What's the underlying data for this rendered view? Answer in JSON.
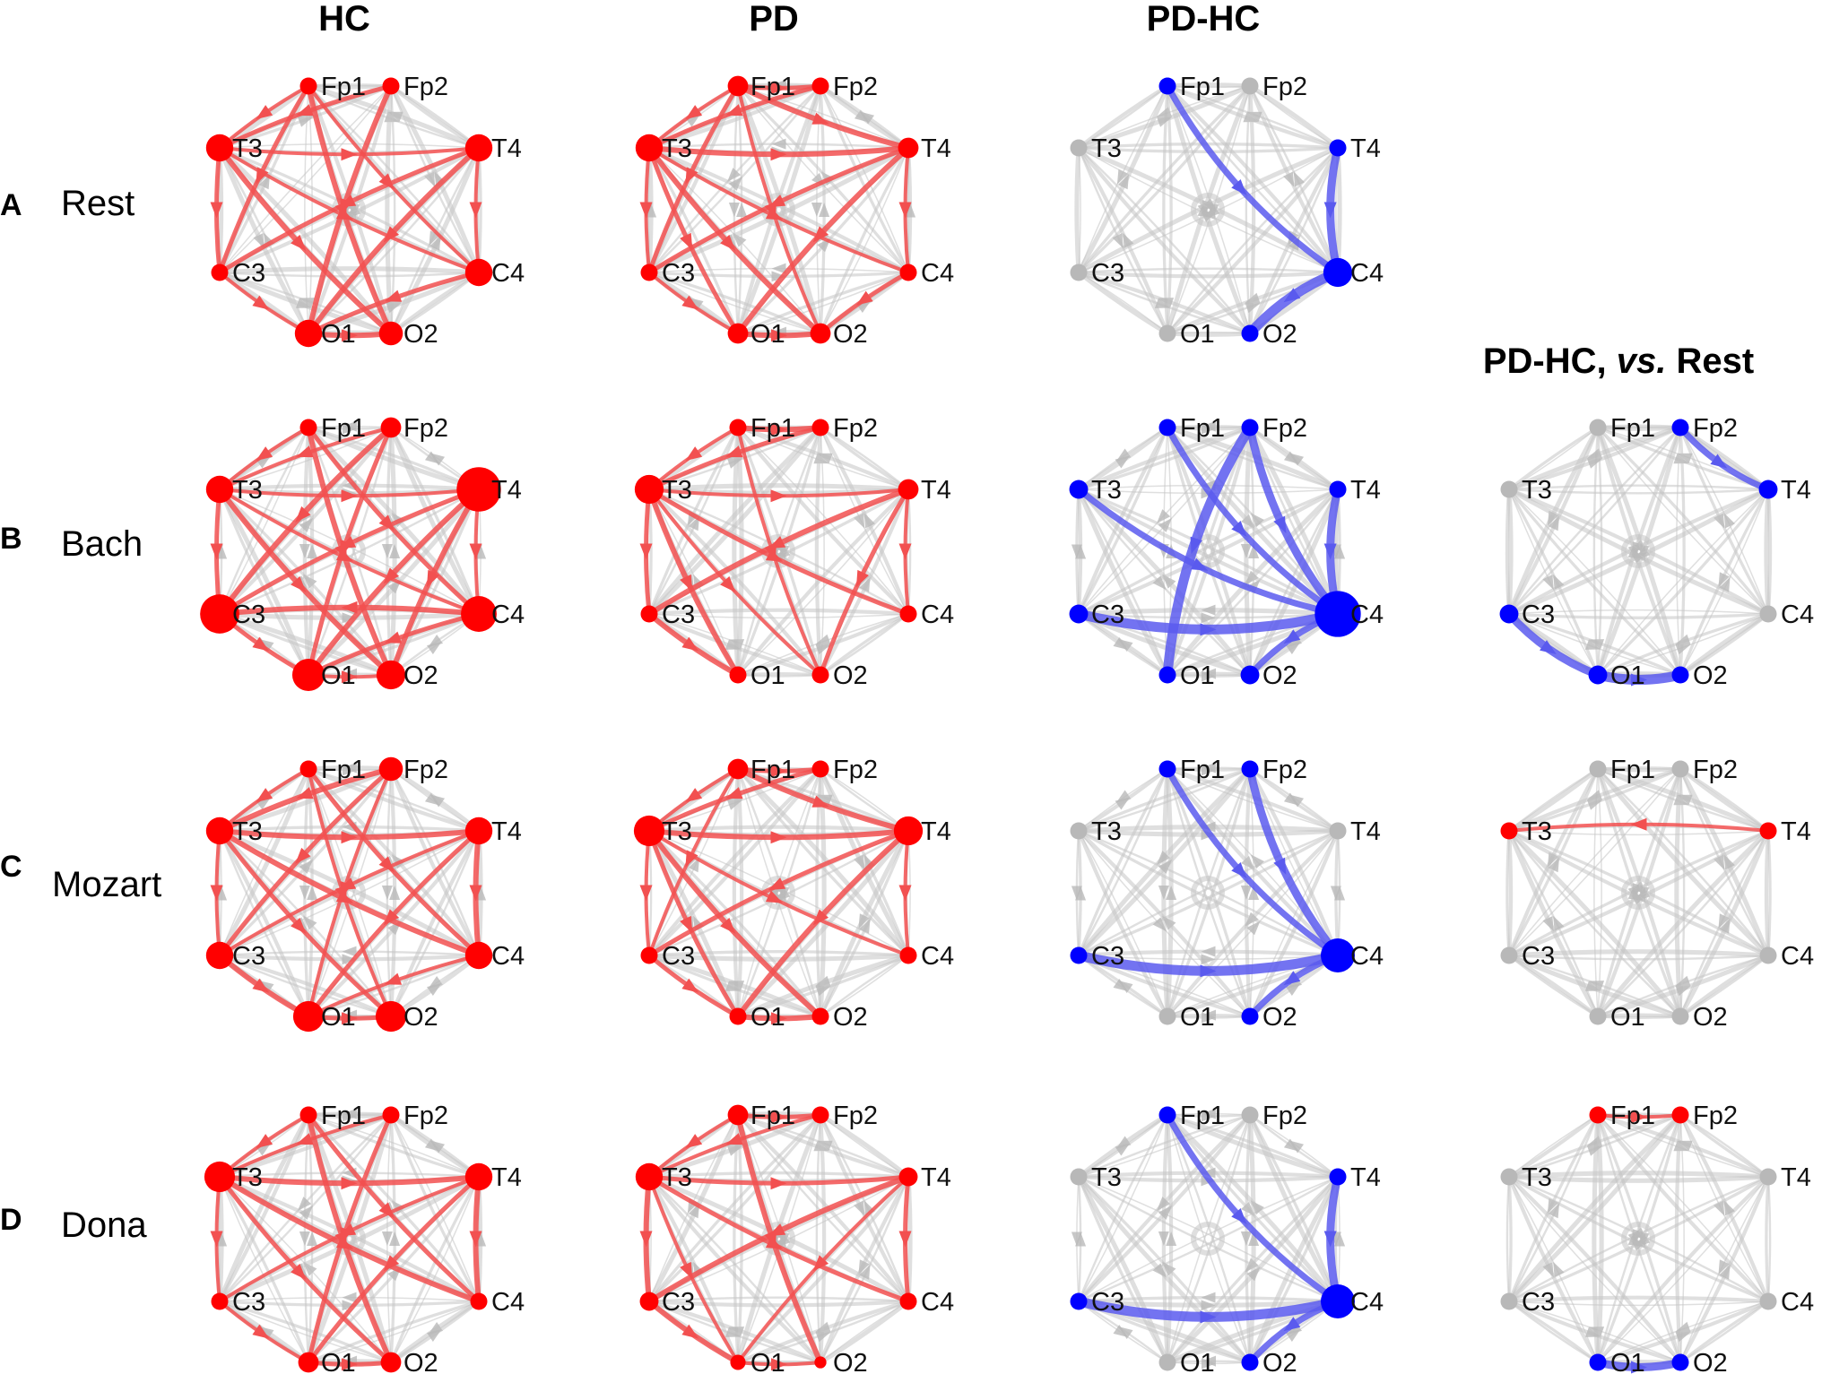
{
  "column_titles": [
    "HC",
    "PD",
    "PD-HC"
  ],
  "extra_title": {
    "main": "PD-HC, ",
    "italic": "vs.",
    "tail": " Rest"
  },
  "rows": [
    {
      "letter": "A",
      "label": "Rest"
    },
    {
      "letter": "B",
      "label": "Bach"
    },
    {
      "letter": "C",
      "label": "Mozart"
    },
    {
      "letter": "D",
      "label": "Dona"
    }
  ],
  "colors": {
    "red": "#ff0000",
    "blue": "#0000ff",
    "grey": "#b8b8b8",
    "red_edge": "#f25050",
    "blue_edge": "#5a5aee",
    "grey_edge": "#c4c4c4"
  },
  "nodes": [
    "Fp1",
    "Fp2",
    "T4",
    "C4",
    "O2",
    "O1",
    "C3",
    "T3"
  ],
  "panels": [
    {
      "row": 0,
      "col": 0,
      "color": "red",
      "nodes": {
        "Fp1": 1,
        "Fp2": 1,
        "T4": 1.6,
        "C4": 1.6,
        "O2": 1.4,
        "O1": 1.6,
        "C3": 1,
        "T3": 1.6
      },
      "edges": [
        [
          "Fp1",
          "T3"
        ],
        [
          "Fp1",
          "C3"
        ],
        [
          "Fp1",
          "O2"
        ],
        [
          "Fp1",
          "C4"
        ],
        [
          "Fp2",
          "T3"
        ],
        [
          "Fp2",
          "O1"
        ],
        [
          "T3",
          "T4"
        ],
        [
          "T3",
          "C3"
        ],
        [
          "T3",
          "O2"
        ],
        [
          "T3",
          "C4"
        ],
        [
          "T4",
          "C3"
        ],
        [
          "T4",
          "O1"
        ],
        [
          "T4",
          "C4"
        ],
        [
          "C4",
          "O1"
        ],
        [
          "O1",
          "O2"
        ],
        [
          "C3",
          "O1"
        ]
      ]
    },
    {
      "row": 0,
      "col": 1,
      "color": "red",
      "nodes": {
        "Fp1": 1.2,
        "Fp2": 1,
        "T4": 1.2,
        "C4": 1,
        "O2": 1.2,
        "O1": 1.2,
        "C3": 1,
        "T3": 1.6
      },
      "edges": [
        [
          "Fp1",
          "T3"
        ],
        [
          "Fp1",
          "C3"
        ],
        [
          "Fp1",
          "T4"
        ],
        [
          "Fp1",
          "O2"
        ],
        [
          "Fp2",
          "T3"
        ],
        [
          "T3",
          "T4"
        ],
        [
          "T3",
          "C3"
        ],
        [
          "T3",
          "O1"
        ],
        [
          "T3",
          "O2"
        ],
        [
          "T3",
          "C4"
        ],
        [
          "T4",
          "C3"
        ],
        [
          "T4",
          "O1"
        ],
        [
          "T4",
          "C4"
        ],
        [
          "C4",
          "O2"
        ],
        [
          "O1",
          "O2"
        ],
        [
          "C3",
          "O1"
        ],
        [
          "Fp1",
          "Fp2"
        ]
      ]
    },
    {
      "row": 0,
      "col": 2,
      "color": "blue",
      "nodes": {
        "Fp1": 1,
        "Fp2": 1,
        "T4": 1,
        "C4": 1.7,
        "O2": 1,
        "O1": 1,
        "C3": 1,
        "T3": 1
      },
      "blue_nodes": [
        "Fp1",
        "T4",
        "C4",
        "O2"
      ],
      "edges": [
        [
          "Fp1",
          "C4"
        ],
        [
          "T4",
          "C4"
        ],
        [
          "C4",
          "O2"
        ]
      ]
    },
    {
      "row": 1,
      "col": 0,
      "color": "red",
      "nodes": {
        "Fp1": 1,
        "Fp2": 1.2,
        "T4": 2.6,
        "C4": 2.1,
        "O2": 1.7,
        "O1": 1.9,
        "C3": 2.3,
        "T3": 1.6
      },
      "edges": [
        [
          "Fp1",
          "T3"
        ],
        [
          "Fp1",
          "C4"
        ],
        [
          "Fp1",
          "O2"
        ],
        [
          "Fp2",
          "T3"
        ],
        [
          "Fp2",
          "O1"
        ],
        [
          "Fp2",
          "C3"
        ],
        [
          "T3",
          "T4"
        ],
        [
          "T3",
          "C3"
        ],
        [
          "T3",
          "O2"
        ],
        [
          "T3",
          "C4"
        ],
        [
          "T4",
          "C3"
        ],
        [
          "T4",
          "O1"
        ],
        [
          "T4",
          "C4"
        ],
        [
          "C4",
          "O1"
        ],
        [
          "C4",
          "C3"
        ],
        [
          "O1",
          "O2"
        ],
        [
          "C3",
          "O1"
        ],
        [
          "T4",
          "O2"
        ]
      ]
    },
    {
      "row": 1,
      "col": 1,
      "color": "red",
      "nodes": {
        "Fp1": 1,
        "Fp2": 1,
        "T4": 1.2,
        "C4": 1,
        "O2": 1,
        "O1": 1,
        "C3": 1,
        "T3": 1.7
      },
      "edges": [
        [
          "Fp1",
          "T3"
        ],
        [
          "Fp2",
          "T3"
        ],
        [
          "Fp1",
          "Fp2"
        ],
        [
          "T3",
          "T4"
        ],
        [
          "T3",
          "C3"
        ],
        [
          "T3",
          "O1"
        ],
        [
          "T3",
          "O2"
        ],
        [
          "T3",
          "C4"
        ],
        [
          "T4",
          "C3"
        ],
        [
          "T4",
          "C4"
        ],
        [
          "T4",
          "O2"
        ],
        [
          "C3",
          "O1"
        ],
        [
          "Fp1",
          "O2"
        ]
      ]
    },
    {
      "row": 1,
      "col": 2,
      "color": "blue",
      "nodes": {
        "Fp1": 1,
        "Fp2": 1,
        "T4": 1,
        "C4": 2.7,
        "O2": 1.1,
        "O1": 1,
        "C3": 1.1,
        "T3": 1.1
      },
      "blue_nodes": [
        "Fp1",
        "Fp2",
        "T3",
        "T4",
        "C4",
        "C3",
        "O1",
        "O2"
      ],
      "edges": [
        [
          "Fp1",
          "C4"
        ],
        [
          "Fp2",
          "C4"
        ],
        [
          "Fp2",
          "O1"
        ],
        [
          "T3",
          "C4"
        ],
        [
          "T4",
          "C4"
        ],
        [
          "C3",
          "C4"
        ],
        [
          "C4",
          "O2"
        ]
      ]
    },
    {
      "row": 1,
      "col": 3,
      "color": "blue",
      "nodes": {
        "Fp1": 1,
        "Fp2": 1,
        "T4": 1.1,
        "C4": 1,
        "O2": 1,
        "O1": 1.1,
        "C3": 1.1,
        "T3": 1
      },
      "blue_nodes": [
        "Fp2",
        "T4",
        "C3",
        "O1",
        "O2"
      ],
      "edges": [
        [
          "Fp2",
          "T4"
        ],
        [
          "C3",
          "O1"
        ],
        [
          "O1",
          "O2"
        ]
      ]
    },
    {
      "row": 2,
      "col": 0,
      "color": "red",
      "nodes": {
        "Fp1": 1,
        "Fp2": 1.4,
        "T4": 1.6,
        "C4": 1.6,
        "O2": 1.8,
        "O1": 1.8,
        "C3": 1.6,
        "T3": 1.6
      },
      "edges": [
        [
          "Fp1",
          "T3"
        ],
        [
          "Fp1",
          "C4"
        ],
        [
          "Fp2",
          "T3"
        ],
        [
          "Fp2",
          "O1"
        ],
        [
          "Fp2",
          "C3"
        ],
        [
          "T3",
          "T4"
        ],
        [
          "T3",
          "C3"
        ],
        [
          "T3",
          "O2"
        ],
        [
          "T3",
          "C4"
        ],
        [
          "T4",
          "C3"
        ],
        [
          "T4",
          "O1"
        ],
        [
          "T4",
          "C4"
        ],
        [
          "C4",
          "O1"
        ],
        [
          "O1",
          "O2"
        ],
        [
          "C3",
          "O1"
        ],
        [
          "Fp1",
          "O2"
        ]
      ]
    },
    {
      "row": 2,
      "col": 1,
      "color": "red",
      "nodes": {
        "Fp1": 1.2,
        "Fp2": 1,
        "T4": 1.7,
        "C4": 1,
        "O2": 1,
        "O1": 1,
        "C3": 1,
        "T3": 1.8
      },
      "edges": [
        [
          "Fp1",
          "T3"
        ],
        [
          "Fp1",
          "Fp2"
        ],
        [
          "Fp1",
          "T4"
        ],
        [
          "Fp1",
          "C3"
        ],
        [
          "Fp2",
          "T3"
        ],
        [
          "T3",
          "T4"
        ],
        [
          "T3",
          "C3"
        ],
        [
          "T3",
          "O1"
        ],
        [
          "T3",
          "O2"
        ],
        [
          "T3",
          "C4"
        ],
        [
          "T4",
          "C3"
        ],
        [
          "T4",
          "O1"
        ],
        [
          "T4",
          "C4"
        ],
        [
          "C3",
          "O1"
        ],
        [
          "O1",
          "O2"
        ]
      ]
    },
    {
      "row": 2,
      "col": 2,
      "color": "blue",
      "nodes": {
        "Fp1": 1,
        "Fp2": 1,
        "T4": 1,
        "C4": 2,
        "O2": 1,
        "O1": 1,
        "C3": 1,
        "T3": 1
      },
      "blue_nodes": [
        "Fp1",
        "Fp2",
        "C3",
        "C4",
        "O2"
      ],
      "edges": [
        [
          "Fp1",
          "C4"
        ],
        [
          "Fp2",
          "C4"
        ],
        [
          "C3",
          "C4"
        ],
        [
          "C4",
          "O2"
        ]
      ]
    },
    {
      "row": 2,
      "col": 3,
      "color": "red",
      "nodes": {
        "Fp1": 1,
        "Fp2": 1,
        "T4": 1,
        "C4": 1,
        "O2": 1,
        "O1": 1,
        "C3": 1,
        "T3": 1
      },
      "red_nodes": [
        "T3",
        "T4"
      ],
      "edges": [
        [
          "T4",
          "T3"
        ]
      ]
    },
    {
      "row": 3,
      "col": 0,
      "color": "red",
      "nodes": {
        "Fp1": 1,
        "Fp2": 1,
        "T4": 1.6,
        "C4": 1,
        "O2": 1.2,
        "O1": 1.2,
        "C3": 1,
        "T3": 1.8
      },
      "edges": [
        [
          "Fp1",
          "T3"
        ],
        [
          "Fp1",
          "C4"
        ],
        [
          "Fp1",
          "O2"
        ],
        [
          "Fp2",
          "T3"
        ],
        [
          "Fp2",
          "O1"
        ],
        [
          "T3",
          "T4"
        ],
        [
          "T3",
          "C3"
        ],
        [
          "T3",
          "O2"
        ],
        [
          "T3",
          "C4"
        ],
        [
          "T4",
          "C3"
        ],
        [
          "T4",
          "O1"
        ],
        [
          "T4",
          "C4"
        ],
        [
          "C3",
          "O1"
        ],
        [
          "O1",
          "O2"
        ]
      ]
    },
    {
      "row": 3,
      "col": 1,
      "color": "red",
      "nodes": {
        "Fp1": 1.2,
        "Fp2": 1,
        "T4": 1.1,
        "C4": 1,
        "O2": 0.7,
        "O1": 0.9,
        "C3": 1.1,
        "T3": 1.6
      },
      "edges": [
        [
          "Fp1",
          "T3"
        ],
        [
          "Fp1",
          "Fp2"
        ],
        [
          "Fp1",
          "O2"
        ],
        [
          "Fp2",
          "T3"
        ],
        [
          "T3",
          "T4"
        ],
        [
          "T3",
          "C3"
        ],
        [
          "T3",
          "O1"
        ],
        [
          "T3",
          "C4"
        ],
        [
          "T4",
          "C3"
        ],
        [
          "T4",
          "O1"
        ],
        [
          "T4",
          "C4"
        ],
        [
          "C3",
          "O1"
        ],
        [
          "O1",
          "O2"
        ]
      ]
    },
    {
      "row": 3,
      "col": 2,
      "color": "blue",
      "nodes": {
        "Fp1": 1,
        "Fp2": 1,
        "T4": 1,
        "C4": 2,
        "O2": 1,
        "O1": 1,
        "C3": 1,
        "T3": 1
      },
      "blue_nodes": [
        "Fp1",
        "T4",
        "C3",
        "C4",
        "O2"
      ],
      "edges": [
        [
          "Fp1",
          "C4"
        ],
        [
          "T4",
          "C4"
        ],
        [
          "C3",
          "C4"
        ],
        [
          "C4",
          "O2"
        ]
      ]
    },
    {
      "row": 3,
      "col": 3,
      "color": "mixed",
      "nodes": {
        "Fp1": 1,
        "Fp2": 1,
        "T4": 1,
        "C4": 1,
        "O2": 1,
        "O1": 1,
        "C3": 1,
        "T3": 1
      },
      "red_nodes": [
        "Fp1",
        "Fp2"
      ],
      "blue_nodes": [
        "O1",
        "O2"
      ],
      "edges": [
        [
          "Fp1",
          "Fp2",
          "red"
        ],
        [
          "O1",
          "O2",
          "blue"
        ]
      ]
    }
  ]
}
